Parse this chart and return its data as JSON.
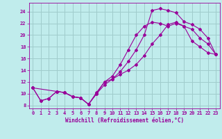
{
  "xlabel": "Windchill (Refroidissement éolien,°C)",
  "bg_color": "#c0ecec",
  "grid_color": "#a0cccc",
  "line_color": "#990099",
  "xlim": [
    -0.5,
    23.5
  ],
  "ylim": [
    7.5,
    25.5
  ],
  "xticks": [
    0,
    1,
    2,
    3,
    4,
    5,
    6,
    7,
    8,
    9,
    10,
    11,
    12,
    13,
    14,
    15,
    16,
    17,
    18,
    19,
    20,
    21,
    22,
    23
  ],
  "yticks": [
    8,
    10,
    12,
    14,
    16,
    18,
    20,
    22,
    24
  ],
  "line1_x": [
    0,
    1,
    2,
    3,
    4,
    5,
    6,
    7,
    8,
    9,
    10,
    11,
    12,
    13,
    14,
    15,
    16,
    17,
    18,
    19,
    20,
    21,
    22,
    23
  ],
  "line1_y": [
    11.0,
    8.8,
    9.2,
    10.4,
    10.2,
    9.5,
    9.3,
    8.2,
    10.2,
    12.0,
    12.5,
    13.3,
    14.0,
    15.0,
    16.5,
    18.5,
    20.0,
    21.8,
    22.2,
    21.5,
    19.0,
    18.0,
    17.0,
    16.7
  ],
  "line2_x": [
    0,
    1,
    2,
    3,
    4,
    5,
    6,
    7,
    8,
    9,
    10,
    11,
    12,
    13,
    14,
    15,
    16,
    17,
    18,
    19,
    20,
    21,
    22,
    23
  ],
  "line2_y": [
    11.0,
    8.8,
    9.2,
    10.4,
    10.2,
    9.5,
    9.3,
    8.2,
    10.0,
    12.0,
    13.0,
    15.0,
    17.5,
    20.0,
    21.5,
    22.2,
    22.0,
    21.5,
    22.0,
    21.5,
    21.0,
    19.5,
    18.5,
    16.7
  ],
  "line3_x": [
    0,
    3,
    4,
    5,
    6,
    7,
    8,
    9,
    10,
    11,
    12,
    13,
    14,
    15,
    16,
    17,
    18,
    19,
    20,
    21,
    22,
    23
  ],
  "line3_y": [
    11.0,
    10.4,
    10.2,
    9.5,
    9.3,
    8.2,
    10.0,
    11.5,
    12.5,
    13.8,
    15.5,
    17.5,
    20.0,
    24.2,
    24.5,
    24.2,
    23.8,
    22.3,
    21.8,
    21.0,
    19.5,
    16.7
  ]
}
